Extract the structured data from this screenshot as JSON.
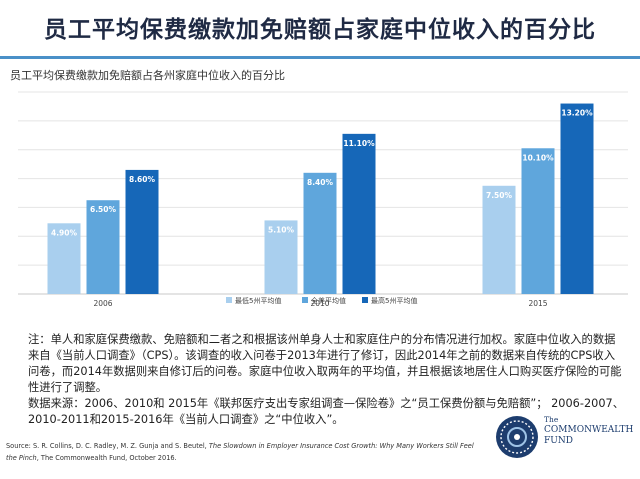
{
  "title": "员工平均保费缴款加免赔额占家庭中位收入的百分比",
  "colors": {
    "accent_rule": "#4a90c8",
    "series": [
      "#a9cfee",
      "#5fa6dc",
      "#1667b8"
    ],
    "label_text": [
      "#ffffff",
      "#ffffff",
      "#ffffff"
    ]
  },
  "chart_data": {
    "type": "bar",
    "title": "员工平均保费缴款加免赔额占各州家庭中位收入的百分比",
    "xlabel": "",
    "ylabel": "",
    "categories": [
      "2006",
      "2010",
      "2015"
    ],
    "series": [
      {
        "name": "最低5州平均值",
        "values": [
          4.9,
          5.1,
          7.5
        ],
        "labels": [
          "4.90%",
          "5.10%",
          "7.50%"
        ]
      },
      {
        "name": "全美平均值",
        "values": [
          6.5,
          8.4,
          10.1
        ],
        "labels": [
          "6.50%",
          "8.40%",
          "10.10%"
        ]
      },
      {
        "name": "最高5州平均值",
        "values": [
          8.6,
          11.1,
          13.2
        ],
        "labels": [
          "8.60%",
          "11.10%",
          "13.20%"
        ]
      }
    ],
    "ylim": [
      0,
      14
    ],
    "grid": true,
    "legend": "bottom-center"
  },
  "notes": {
    "note": "注：单人和家庭保费缴款、免赔额和二者之和根据该州单身人士和家庭住户的分布情况进行加权。家庭中位收入的数据来自《当前人口调查》（CPS）。该调查的收入问卷于2013年进行了修订，因此2014年之前的数据来自传统的CPS收入问卷，而2014年数据则来自修订后的问卷。家庭中位收入取两年的平均值，并且根据该地居住人口购买医疗保险的可能性进行了调整。",
    "data_source": "数据来源：2006、2010和 2015年《联邦医疗支出专家组调查—保险卷》之“员工保费份额与免赔额”； 2006-2007、2010-2011和2015-2016年《当前人口调查》之“中位收入”。"
  },
  "source": {
    "prefix": "Source: S. R. Collins, D. C. Radley, M. Z. Gunja and S. Beutel, ",
    "title": "The Slowdown in Employer Insurance Cost Growth: Why Many Workers Still Feel the Pinch",
    "suffix": ", The Commonwealth Fund, October 2016."
  },
  "logo": {
    "line1": "The",
    "line2": "COMMONWEALTH",
    "line3": "FUND"
  }
}
